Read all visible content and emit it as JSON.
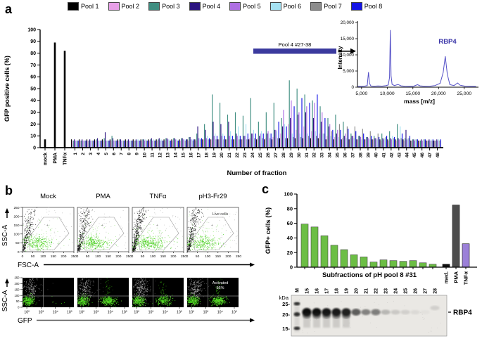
{
  "panel_a": {
    "label": "a",
    "legend": [
      {
        "label": "Pool 1",
        "color": "#000000"
      },
      {
        "label": "Pool 2",
        "color": "#E79FE7"
      },
      {
        "label": "Pool 3",
        "color": "#3F8E81"
      },
      {
        "label": "Pool 4",
        "color": "#2B1380"
      },
      {
        "label": "Pool 5",
        "color": "#AE6FE3"
      },
      {
        "label": "Pool 6",
        "color": "#A5E2F3"
      },
      {
        "label": "Pool 7",
        "color": "#8C8C8C"
      },
      {
        "label": "Pool 8",
        "color": "#1414E6"
      }
    ],
    "chart_data": {
      "type": "bar",
      "ylabel": "GFP positive cells (%)",
      "xlabel": "Number of fraction",
      "ylim": [
        0,
        100
      ],
      "yticks": [
        0,
        10,
        20,
        30,
        40,
        50,
        60,
        70,
        80,
        90,
        100
      ],
      "controls": [
        {
          "label": "mock",
          "value": 7
        },
        {
          "label": "PMA",
          "value": 89
        },
        {
          "label": "TNFα",
          "value": 82
        }
      ],
      "fraction_labels": [
        "1",
        "2",
        "3",
        "4",
        "5",
        "6",
        "7",
        "8",
        "9",
        "10",
        "11",
        "12",
        "13",
        "14",
        "15",
        "16",
        "17",
        "18",
        "19",
        "20",
        "21",
        "22",
        "23",
        "24",
        "25",
        "26",
        "27",
        "28",
        "29",
        "30",
        "31",
        "32",
        "33",
        "34",
        "35",
        "36",
        "37",
        "38",
        "39",
        "40",
        "41",
        "42",
        "43",
        "44",
        "45",
        "46",
        "47",
        "48"
      ],
      "series": [
        {
          "name": "Pool 1",
          "color": "#000000",
          "values": [
            7,
            7,
            7,
            7,
            7,
            7,
            7,
            7,
            7,
            7,
            7,
            7,
            7,
            7,
            7,
            7,
            7,
            7,
            7,
            7,
            7,
            7,
            7,
            7,
            7,
            7,
            7,
            8,
            8,
            8,
            8,
            8,
            8,
            7,
            7,
            7,
            7,
            7,
            7,
            7,
            7,
            7,
            7,
            7,
            6,
            6,
            6,
            6
          ]
        },
        {
          "name": "Pool 2",
          "color": "#E79FE7",
          "values": [
            6,
            6,
            6,
            6,
            6,
            6,
            6,
            6,
            6,
            6,
            6,
            6,
            6,
            6,
            6,
            6,
            6,
            7,
            7,
            7,
            7,
            7,
            7,
            8,
            8,
            8,
            9,
            12,
            20,
            15,
            18,
            14,
            12,
            10,
            9,
            8,
            8,
            7,
            7,
            7,
            6,
            6,
            6,
            6,
            6,
            6,
            6,
            6
          ]
        },
        {
          "name": "Pool 3",
          "color": "#3F8E81",
          "values": [
            6,
            6,
            6,
            7,
            8,
            10,
            7,
            6,
            6,
            7,
            7,
            7,
            8,
            8,
            8,
            9,
            12,
            20,
            45,
            38,
            28,
            30,
            27,
            42,
            22,
            30,
            38,
            25,
            57,
            50,
            45,
            40,
            35,
            25,
            28,
            22,
            12,
            10,
            9,
            10,
            12,
            14,
            20,
            8,
            7,
            6,
            6,
            6
          ]
        },
        {
          "name": "Pool 4",
          "color": "#2B1380",
          "values": [
            7,
            7,
            7,
            8,
            13,
            8,
            7,
            7,
            7,
            7,
            8,
            8,
            8,
            8,
            8,
            9,
            18,
            15,
            22,
            20,
            22,
            12,
            10,
            12,
            10,
            12,
            15,
            18,
            25,
            28,
            30,
            25,
            22,
            18,
            12,
            10,
            10,
            10,
            9,
            8,
            8,
            8,
            8,
            15,
            7,
            7,
            7,
            7
          ]
        },
        {
          "name": "Pool 5",
          "color": "#AE6FE3",
          "values": [
            6,
            6,
            6,
            6,
            6,
            6,
            6,
            6,
            6,
            6,
            6,
            6,
            7,
            7,
            7,
            7,
            8,
            8,
            10,
            10,
            10,
            10,
            10,
            12,
            12,
            14,
            15,
            32,
            40,
            30,
            35,
            38,
            30,
            20,
            15,
            12,
            10,
            9,
            8,
            8,
            7,
            7,
            7,
            7,
            6,
            6,
            6,
            6
          ]
        },
        {
          "name": "Pool 6",
          "color": "#A5E2F3",
          "values": [
            6,
            6,
            6,
            6,
            6,
            6,
            6,
            6,
            7,
            7,
            7,
            7,
            7,
            7,
            7,
            7,
            8,
            10,
            12,
            12,
            14,
            18,
            20,
            15,
            14,
            12,
            14,
            20,
            12,
            12,
            12,
            14,
            12,
            10,
            9,
            8,
            8,
            7,
            7,
            7,
            8,
            10,
            18,
            8,
            7,
            7,
            7,
            7
          ]
        },
        {
          "name": "Pool 7",
          "color": "#8C8C8C",
          "values": [
            6,
            6,
            6,
            6,
            6,
            6,
            6,
            6,
            6,
            6,
            6,
            6,
            6,
            6,
            6,
            6,
            7,
            7,
            7,
            7,
            7,
            7,
            7,
            8,
            8,
            8,
            8,
            8,
            9,
            9,
            10,
            10,
            12,
            14,
            20,
            18,
            18,
            16,
            14,
            12,
            9,
            8,
            8,
            8,
            7,
            7,
            6,
            6
          ]
        },
        {
          "name": "Pool 8",
          "color": "#1414E6",
          "values": [
            6,
            6,
            6,
            6,
            6,
            6,
            6,
            6,
            6,
            6,
            6,
            6,
            6,
            6,
            7,
            7,
            8,
            8,
            10,
            10,
            10,
            10,
            12,
            12,
            12,
            12,
            22,
            18,
            35,
            42,
            38,
            45,
            25,
            15,
            15,
            16,
            14,
            12,
            10,
            9,
            10,
            9,
            12,
            10,
            7,
            7,
            7,
            7
          ]
        }
      ],
      "annotation": {
        "text": "Pool 4 #27-38",
        "from_fraction": 27,
        "to_fraction": 38,
        "color": "#3B3A9E"
      }
    },
    "inset_chart_data": {
      "type": "line",
      "title": "RBP4",
      "ylabel": "Intensity",
      "xlabel": "mass [m/z]",
      "xlim": [
        4200,
        27500
      ],
      "ylim": [
        0,
        20000
      ],
      "ytick_labels": [
        "0",
        "5,000",
        "10,000",
        "15,000",
        "20,000"
      ],
      "ytick_values": [
        0,
        5000,
        10000,
        15000,
        20000
      ],
      "xtick_labels": [
        "5,000",
        "10,000",
        "15,000",
        "20,000",
        "25,000"
      ],
      "xtick_values": [
        5000,
        10000,
        15000,
        20000,
        25000
      ],
      "line_color": "#5450C7",
      "title_color": "#3A35A8",
      "points": [
        [
          4300,
          250
        ],
        [
          5000,
          280
        ],
        [
          5600,
          320
        ],
        [
          6100,
          500
        ],
        [
          6350,
          4650
        ],
        [
          6550,
          1200
        ],
        [
          6800,
          400
        ],
        [
          7400,
          300
        ],
        [
          8200,
          380
        ],
        [
          9000,
          320
        ],
        [
          9700,
          450
        ],
        [
          10200,
          700
        ],
        [
          10450,
          3000
        ],
        [
          10600,
          17650
        ],
        [
          10750,
          3500
        ],
        [
          10950,
          900
        ],
        [
          11400,
          500
        ],
        [
          12100,
          850
        ],
        [
          12700,
          420
        ],
        [
          13400,
          300
        ],
        [
          14300,
          260
        ],
        [
          15200,
          350
        ],
        [
          15900,
          780
        ],
        [
          16400,
          420
        ],
        [
          17300,
          280
        ],
        [
          18300,
          300
        ],
        [
          19300,
          500
        ],
        [
          20300,
          1200
        ],
        [
          20900,
          4500
        ],
        [
          21300,
          9550
        ],
        [
          21700,
          4000
        ],
        [
          22200,
          800
        ],
        [
          23000,
          500
        ],
        [
          23700,
          1300
        ],
        [
          24200,
          600
        ],
        [
          25200,
          300
        ],
        [
          26200,
          260
        ],
        [
          27300,
          240
        ]
      ]
    }
  },
  "panel_b": {
    "label": "b",
    "top_row": {
      "titles": [
        "Mock",
        "PMA",
        "TNFα",
        "pH3-Fr29"
      ],
      "ylabel": "SSC-A",
      "xlabel": "FSC-A",
      "yticks": [
        "250",
        "200",
        "150",
        "100",
        "50",
        "0"
      ],
      "xticks": [
        "0",
        "50",
        "100",
        "150",
        "200",
        "250"
      ],
      "gate_label": "Live cells"
    },
    "bottom_row": {
      "ylabel": "SSC-A",
      "xlabel": "GFP",
      "yticks": [
        "250",
        "200",
        "150",
        "100",
        "50",
        "0"
      ],
      "xticks": [
        "10²",
        "10³",
        "10⁴",
        "10⁵"
      ],
      "annotation_lines": [
        "Activated",
        "56%"
      ],
      "right_population": [
        "low",
        "high",
        "high",
        "high"
      ]
    }
  },
  "panel_c": {
    "label": "c",
    "chart_data": {
      "type": "bar",
      "ylabel": "GFP+ cells (%)",
      "xlabel": "Subfractions of pH pool 8 #31",
      "ylim": [
        0,
        100
      ],
      "yticks": [
        0,
        20,
        40,
        60,
        80,
        100
      ],
      "categories": [
        "15",
        "16",
        "17",
        "18",
        "19",
        "20",
        "21",
        "22",
        "23",
        "24",
        "25",
        "26",
        "27",
        "28",
        "med.",
        "PMA",
        "TNFα"
      ],
      "values": [
        59,
        55,
        43,
        30,
        24,
        17,
        14,
        7,
        10,
        9,
        8,
        9,
        6,
        4,
        4,
        85,
        32
      ],
      "bar_colors": [
        "#6CBE45",
        "#6CBE45",
        "#6CBE45",
        "#6CBE45",
        "#6CBE45",
        "#6CBE45",
        "#6CBE45",
        "#6CBE45",
        "#6CBE45",
        "#6CBE45",
        "#6CBE45",
        "#6CBE45",
        "#6CBE45",
        "#6CBE45",
        "#111111",
        "#4D4D4D",
        "#9B80D8"
      ],
      "right_labels": [
        "med.",
        "PMA",
        "TNFα"
      ]
    },
    "blot": {
      "kda_label": "kDa",
      "marker_labels": [
        "25-",
        "20-",
        "15-"
      ],
      "lane_labels": [
        "M",
        "15",
        "16",
        "17",
        "18",
        "19",
        "20",
        "21",
        "22",
        "23",
        "24",
        "25",
        "26",
        "27",
        "28"
      ],
      "band_label": "RBP4",
      "band_intensities": [
        1,
        0.95,
        0.92,
        0.9,
        0.87,
        0.62,
        0.42,
        0.48,
        0.2,
        0.13,
        0.1,
        0.06,
        0.03,
        0.1
      ]
    }
  }
}
